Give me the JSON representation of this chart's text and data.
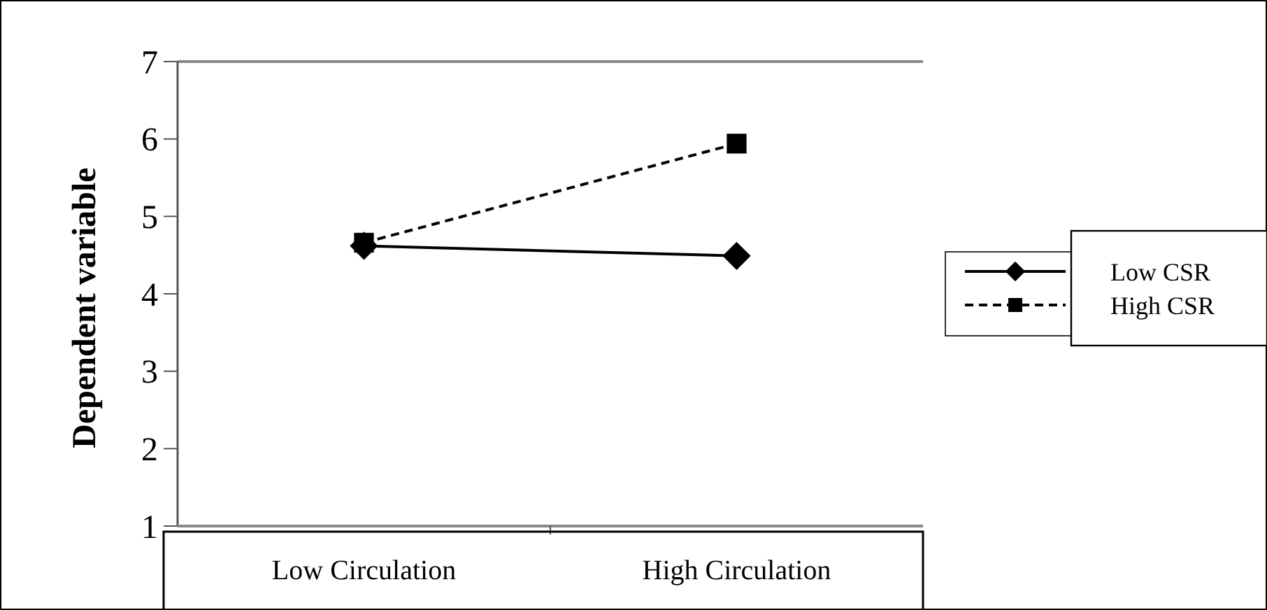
{
  "chart_data": {
    "type": "line",
    "ylabel": "Dependent variable",
    "categories": [
      "Low Circulation",
      "High Circulation"
    ],
    "series": [
      {
        "name": "Low CSR",
        "color": "#000000",
        "values": [
          4.62,
          4.49
        ],
        "marker": "diamond",
        "line_style": "solid"
      },
      {
        "name": "High CSR",
        "color": "#000000",
        "values": [
          4.66,
          5.94
        ],
        "marker": "square",
        "line_style": "dashed"
      }
    ],
    "ylim": [
      1,
      7
    ],
    "yticks": [
      1,
      2,
      3,
      4,
      5,
      6,
      7
    ],
    "grid": false,
    "legend": "right"
  }
}
